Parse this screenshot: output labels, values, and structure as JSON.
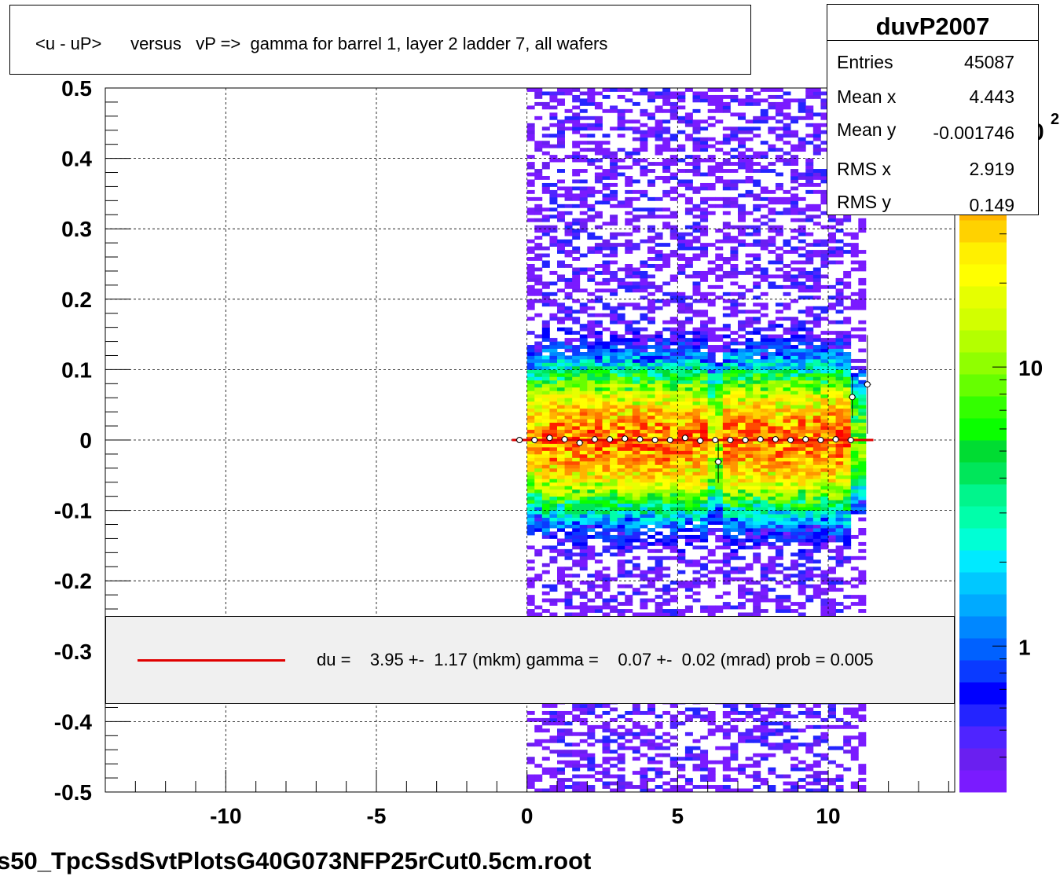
{
  "title": "<u - uP>      versus   vP =>  gamma for barrel 1, layer 2 ladder 7, all wafers",
  "stats": {
    "name": "duvP2007",
    "rows": [
      {
        "label": "Entries",
        "value": "45087"
      },
      {
        "label": "Mean x",
        "value": "4.443"
      },
      {
        "label": "Mean y",
        "value": "-0.001746"
      },
      {
        "label": "RMS x",
        "value": "2.919"
      },
      {
        "label": "RMS y",
        "value": "0.149"
      }
    ]
  },
  "legend": {
    "text": "du =    3.95 +-  1.17 (mkm) gamma =    0.07 +-  0.02 (mrad) prob = 0.005",
    "line_color": "#e00000"
  },
  "file_label": "s50_TpcSsdSvtPlotsG40G073NFP25rCut0.5cm.root",
  "colorbar": {
    "labels": [
      {
        "text": "1",
        "value": 1
      },
      {
        "text": "10",
        "value": 10
      }
    ],
    "clipped_label": "0",
    "clipped_exponent": "2",
    "palette": [
      "#7a1bff",
      "#6a1ff0",
      "#4f24ff",
      "#2424ff",
      "#0000ff",
      "#0a3aff",
      "#0061ff",
      "#0087ff",
      "#00aaff",
      "#00c8ff",
      "#00eaff",
      "#00ffd5",
      "#00ffaa",
      "#00f58c",
      "#00e65a",
      "#00dc32",
      "#0aff00",
      "#33ff00",
      "#66ff00",
      "#90ff00",
      "#b4ff00",
      "#d2ff00",
      "#e6ff00",
      "#ffff00",
      "#fff000",
      "#ffd200",
      "#ffb400",
      "#ff9600",
      "#ff7800",
      "#ff4b00",
      "#ff2000",
      "#ff0000"
    ]
  },
  "chart_data": {
    "type": "heatmap",
    "title": "<u - uP>      versus   vP =>  gamma for barrel 1, layer 2 ladder 7, all wafers",
    "xlabel": "",
    "ylabel": "",
    "xlim": [
      -14,
      14.2
    ],
    "ylim": [
      -0.5,
      0.5
    ],
    "x_ticks": [
      {
        "value": -10,
        "label": "-10"
      },
      {
        "value": -5,
        "label": "-5"
      },
      {
        "value": 0,
        "label": "0"
      },
      {
        "value": 5,
        "label": "5"
      },
      {
        "value": 10,
        "label": "10"
      }
    ],
    "y_ticks": [
      {
        "value": 0.5,
        "label": "0.5"
      },
      {
        "value": 0.4,
        "label": "0.4"
      },
      {
        "value": 0.3,
        "label": "0.3"
      },
      {
        "value": 0.2,
        "label": "0.2"
      },
      {
        "value": 0.1,
        "label": "0.1"
      },
      {
        "value": 0,
        "label": "0"
      },
      {
        "value": -0.1,
        "label": "-0.1"
      },
      {
        "value": -0.2,
        "label": "-0.2"
      },
      {
        "value": -0.3,
        "label": "-0.3"
      },
      {
        "value": -0.4,
        "label": "-0.4"
      },
      {
        "value": -0.5,
        "label": "-0.5"
      }
    ],
    "grid": true,
    "log_z": true,
    "z_range": [
      0.3,
      100
    ],
    "data_x_range": [
      0,
      10.6
    ],
    "data_gaps_x": [
      [
        6.0,
        6.5
      ]
    ],
    "data_y_center": 0,
    "data_y_sigma": 0.149,
    "profile_points": [
      {
        "x": -0.25,
        "y": 0.0
      },
      {
        "x": 0.25,
        "y": 0.0
      },
      {
        "x": 0.75,
        "y": 0.003
      },
      {
        "x": 1.25,
        "y": 0.001
      },
      {
        "x": 1.75,
        "y": -0.004
      },
      {
        "x": 2.25,
        "y": 0.001
      },
      {
        "x": 2.75,
        "y": 0.001
      },
      {
        "x": 3.25,
        "y": 0.002
      },
      {
        "x": 3.75,
        "y": 0.001
      },
      {
        "x": 4.25,
        "y": 0.0
      },
      {
        "x": 4.75,
        "y": 0.0
      },
      {
        "x": 5.25,
        "y": 0.003
      },
      {
        "x": 5.75,
        "y": -0.001
      },
      {
        "x": 6.25,
        "y": 0.0
      },
      {
        "x": 6.35,
        "y": -0.031
      },
      {
        "x": 6.75,
        "y": 0.0
      },
      {
        "x": 7.25,
        "y": 0.0
      },
      {
        "x": 7.75,
        "y": 0.001
      },
      {
        "x": 8.25,
        "y": 0.001
      },
      {
        "x": 8.75,
        "y": 0.0
      },
      {
        "x": 9.25,
        "y": 0.001
      },
      {
        "x": 9.75,
        "y": 0.0
      },
      {
        "x": 10.25,
        "y": 0.001
      },
      {
        "x": 10.75,
        "y": 0.0
      },
      {
        "x": 10.8,
        "y": 0.061
      },
      {
        "x": 11.3,
        "y": 0.079
      }
    ],
    "fit_line": {
      "x": [
        -0.5,
        11.5
      ],
      "y": [
        0.0,
        0.0
      ],
      "color": "#e00000"
    }
  }
}
